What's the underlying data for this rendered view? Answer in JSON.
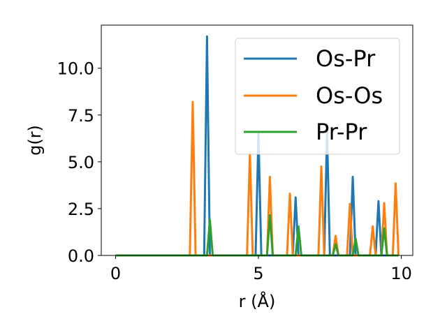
{
  "chart_data": {
    "type": "line",
    "xlabel": "r (Å)",
    "ylabel": "g(r)",
    "xlim": [
      -0.5,
      10.4
    ],
    "ylim": [
      0,
      12.3
    ],
    "xticks": [
      0,
      5,
      10
    ],
    "xtick_labels": [
      "0",
      "5",
      "10"
    ],
    "yticks": [
      0.0,
      2.5,
      5.0,
      7.5,
      10.0
    ],
    "ytick_labels": [
      "0.0",
      "2.5",
      "5.0",
      "7.5",
      "10.0"
    ],
    "grid": false,
    "legend_position": "top-right",
    "series": [
      {
        "name": "Os-Pr",
        "color": "#1f77b4",
        "x": [
          0,
          3.0,
          3.1,
          3.2,
          3.3,
          3.4,
          4.8,
          4.9,
          5.0,
          5.1,
          5.2,
          6.1,
          6.2,
          6.3,
          6.4,
          6.5,
          7.2,
          7.3,
          7.4,
          7.5,
          7.6,
          8.1,
          8.2,
          8.3,
          8.4,
          8.5,
          9.0,
          9.1,
          9.2,
          9.3,
          9.4,
          9.9
        ],
        "y": [
          0,
          0,
          0,
          11.7,
          0,
          0,
          0,
          0,
          6.5,
          0,
          0,
          0,
          0,
          3.1,
          0,
          0,
          0,
          0,
          6.6,
          0,
          0,
          0,
          0,
          4.2,
          0,
          0,
          0,
          0,
          2.9,
          0,
          0,
          0
        ]
      },
      {
        "name": "Os-Os",
        "color": "#ff7f0e",
        "x": [
          0,
          2.6,
          2.7,
          2.8,
          4.6,
          4.7,
          4.8,
          5.3,
          5.4,
          5.5,
          6.0,
          6.1,
          6.2,
          7.1,
          7.2,
          7.3,
          7.6,
          7.7,
          7.8,
          8.1,
          8.2,
          8.3,
          8.9,
          9.0,
          9.1,
          9.3,
          9.4,
          9.5,
          9.7,
          9.8,
          9.9
        ],
        "y": [
          0,
          0,
          8.2,
          0,
          0,
          5.5,
          0,
          0,
          4.2,
          0,
          0,
          3.3,
          0,
          0,
          4.75,
          0,
          0,
          1.05,
          0,
          0,
          2.75,
          0,
          0,
          1.55,
          0,
          0,
          2.8,
          0,
          0,
          3.85,
          0
        ]
      },
      {
        "name": "Pr-Pr",
        "color": "#2ca02c",
        "x": [
          0,
          3.2,
          3.3,
          3.4,
          5.3,
          5.4,
          5.5,
          6.3,
          6.4,
          6.5,
          7.6,
          7.7,
          7.8,
          8.3,
          8.4,
          8.5,
          9.3,
          9.4,
          9.5,
          9.9
        ],
        "y": [
          0,
          0,
          1.9,
          0,
          0,
          2.15,
          0,
          0,
          1.55,
          0,
          0,
          0.6,
          0,
          0,
          0.9,
          0,
          0,
          1.45,
          0,
          0
        ]
      }
    ]
  }
}
